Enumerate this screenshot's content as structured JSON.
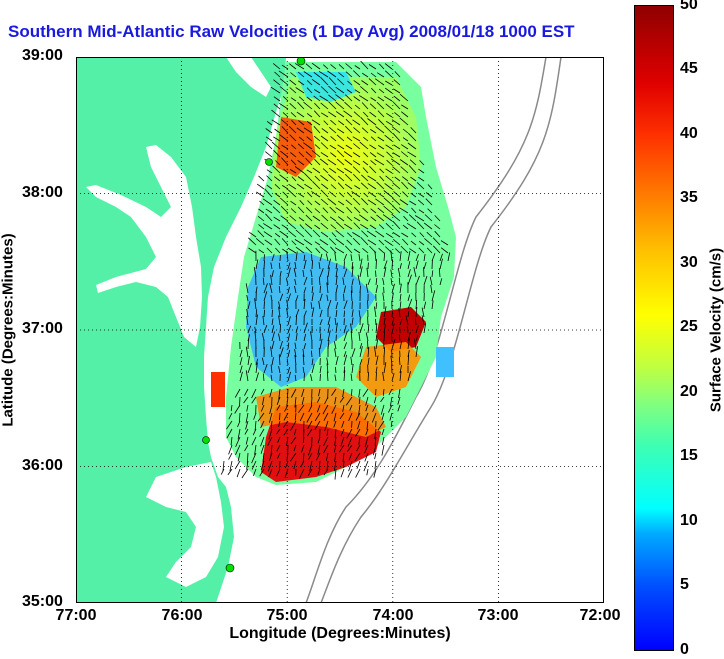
{
  "title": "Southern Mid-Atlantic Raw Velocities (1 Day Avg) 2008/01/18 1000 EST",
  "axes": {
    "xlabel": "Longitude (Degrees:Minutes)",
    "ylabel": "Latitude (Degrees:Minutes)",
    "xticks": [
      "77:00",
      "76:00",
      "75:00",
      "74:00",
      "73:00",
      "72:00"
    ],
    "yticks": [
      "39:00",
      "38:00",
      "37:00",
      "36:00",
      "35:00"
    ]
  },
  "colorbar": {
    "label": "Surface Velocity (cm/s)",
    "ticks": [
      "50",
      "45",
      "40",
      "35",
      "30",
      "25",
      "20",
      "15",
      "10",
      "5",
      "0"
    ],
    "range": [
      0,
      50
    ]
  },
  "colors": {
    "land": "#55f0a8",
    "title": "#1a1adf"
  }
}
